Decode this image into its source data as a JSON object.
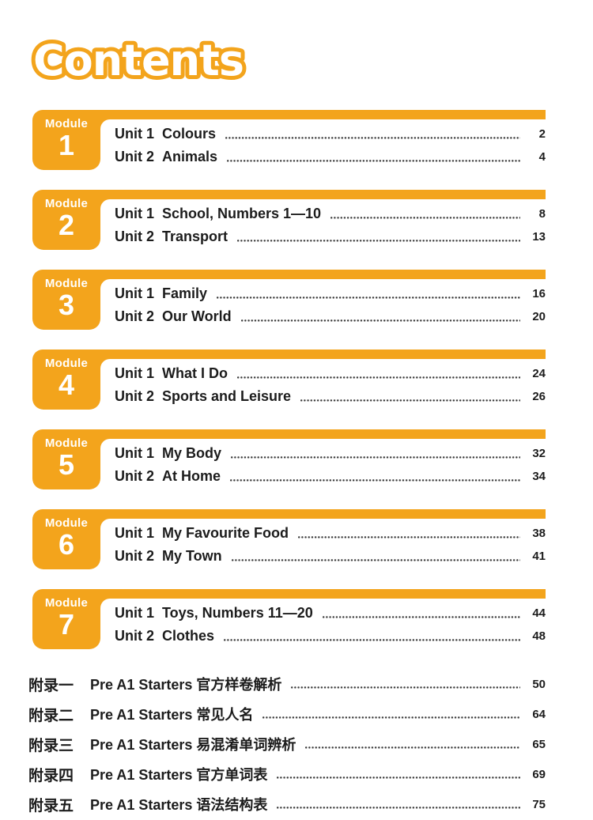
{
  "page": {
    "title": "Contents"
  },
  "colors": {
    "accent_orange": "#F3A41C",
    "text": "#1C1C1C"
  },
  "modules": [
    {
      "label": "Module",
      "number": "1",
      "units": [
        {
          "label": "Unit 1",
          "title": "Colours",
          "page": "2"
        },
        {
          "label": "Unit 2",
          "title": "Animals",
          "page": "4"
        }
      ]
    },
    {
      "label": "Module",
      "number": "2",
      "units": [
        {
          "label": "Unit 1",
          "title": "School, Numbers 1—10",
          "page": "8"
        },
        {
          "label": "Unit 2",
          "title": "Transport",
          "page": "13"
        }
      ]
    },
    {
      "label": "Module",
      "number": "3",
      "units": [
        {
          "label": "Unit 1",
          "title": "Family",
          "page": "16"
        },
        {
          "label": "Unit 2",
          "title": "Our World",
          "page": "20"
        }
      ]
    },
    {
      "label": "Module",
      "number": "4",
      "units": [
        {
          "label": "Unit 1",
          "title": "What I Do",
          "page": "24"
        },
        {
          "label": "Unit 2",
          "title": "Sports and Leisure",
          "page": "26"
        }
      ]
    },
    {
      "label": "Module",
      "number": "5",
      "units": [
        {
          "label": "Unit 1",
          "title": "My Body",
          "page": "32"
        },
        {
          "label": "Unit 2",
          "title": "At Home",
          "page": "34"
        }
      ]
    },
    {
      "label": "Module",
      "number": "6",
      "units": [
        {
          "label": "Unit 1",
          "title": "My Favourite Food",
          "page": "38"
        },
        {
          "label": "Unit 2",
          "title": "My Town",
          "page": "41"
        }
      ]
    },
    {
      "label": "Module",
      "number": "7",
      "units": [
        {
          "label": "Unit 1",
          "title": "Toys, Numbers 11—20",
          "page": "44"
        },
        {
          "label": "Unit 2",
          "title": "Clothes",
          "page": "48"
        }
      ]
    }
  ],
  "appendices": [
    {
      "label": "附录一",
      "title": "Pre A1 Starters 官方样卷解析",
      "page": "50"
    },
    {
      "label": "附录二",
      "title": "Pre A1 Starters 常见人名",
      "page": "64"
    },
    {
      "label": "附录三",
      "title": "Pre A1 Starters 易混淆单词辨析",
      "page": "65"
    },
    {
      "label": "附录四",
      "title": "Pre A1 Starters 官方单词表",
      "page": "69"
    },
    {
      "label": "附录五",
      "title": "Pre A1 Starters 语法结构表",
      "page": "75"
    }
  ]
}
